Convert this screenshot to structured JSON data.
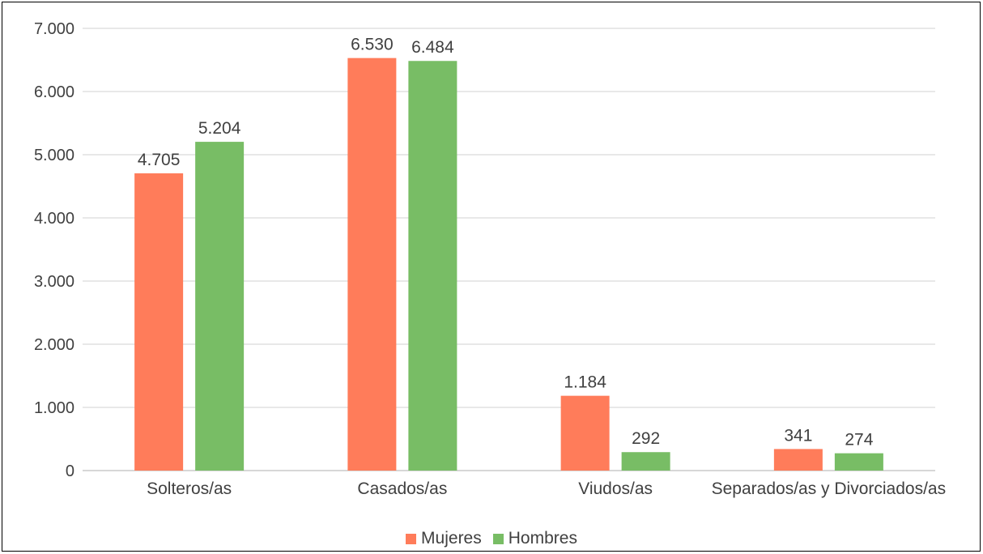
{
  "chart_data": {
    "type": "bar",
    "categories": [
      "Solteros/as",
      "Casados/as",
      "Viudos/as",
      "Separados/as y Divorciados/as"
    ],
    "series": [
      {
        "name": "Mujeres",
        "values": [
          4705,
          6530,
          1184,
          341
        ],
        "labels": [
          "4.705",
          "6.530",
          "1.184",
          "341"
        ],
        "color": "#FF7C5A"
      },
      {
        "name": "Hombres",
        "values": [
          5204,
          6484,
          292,
          274
        ],
        "labels": [
          "5.204",
          "6.484",
          "292",
          "274"
        ],
        "color": "#78BD65"
      }
    ],
    "ylim": [
      0,
      7000
    ],
    "yticks": [
      0,
      1000,
      2000,
      3000,
      4000,
      5000,
      6000,
      7000
    ],
    "ytick_labels": [
      "0",
      "1.000",
      "2.000",
      "3.000",
      "4.000",
      "5.000",
      "6.000",
      "7.000"
    ],
    "grid": true,
    "legend_position": "bottom"
  }
}
